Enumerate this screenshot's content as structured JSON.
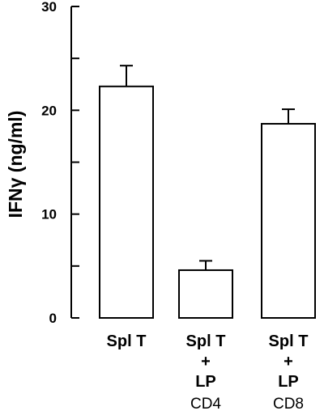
{
  "chart_data": {
    "type": "bar",
    "ylabel": "IFNγ (ng/ml)",
    "ylim": [
      0,
      30
    ],
    "major_ticks": [
      0,
      10,
      20,
      30
    ],
    "minor_ticks": [
      5,
      15,
      25
    ],
    "categories": [
      {
        "lines": [
          "Spl T"
        ],
        "sub": ""
      },
      {
        "lines": [
          "Spl T",
          "+",
          "LP"
        ],
        "sub": "CD4"
      },
      {
        "lines": [
          "Spl T",
          "+",
          "LP"
        ],
        "sub": "CD8"
      }
    ],
    "values": [
      22.3,
      4.6,
      18.7
    ],
    "errors": [
      2.0,
      0.9,
      1.4
    ]
  }
}
